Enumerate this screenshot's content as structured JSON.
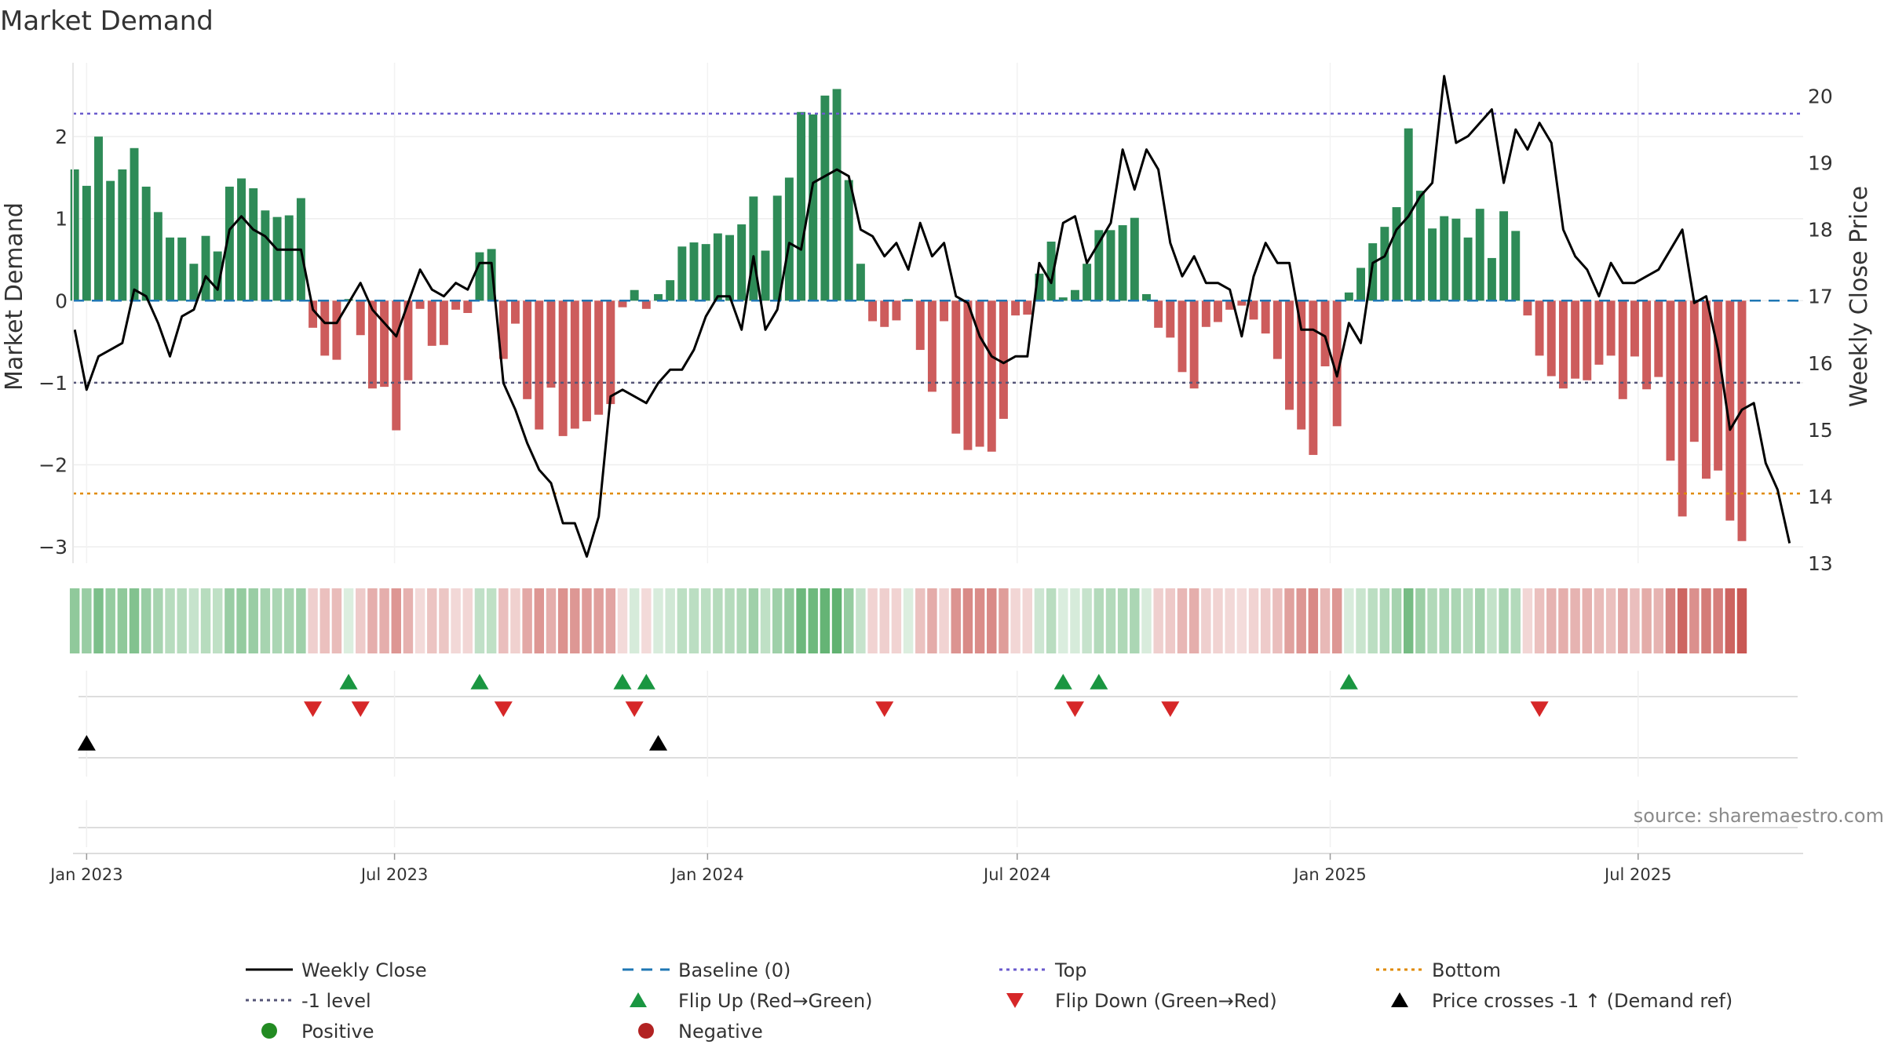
{
  "chart_data": {
    "type": "bar",
    "title": "Market Demand",
    "ylabel": "Market Demand",
    "ylabel_right": "Weekly Close Price",
    "source": "source: sharemaestro.com",
    "ylim": [
      -3.2,
      2.9
    ],
    "ylim_right": [
      13.0,
      20.5
    ],
    "yticks": [
      2,
      1,
      0,
      -1,
      -2,
      -3
    ],
    "ytick_labels": [
      "2",
      "1",
      "0",
      "−1",
      "−2",
      "−3"
    ],
    "yticks_right": [
      20,
      19,
      18,
      17,
      16,
      15,
      14,
      13
    ],
    "ytick_labels_right": [
      "20",
      "19",
      "18",
      "17",
      "16",
      "15",
      "14",
      "13"
    ],
    "x_start": "2022-12-25",
    "week_days": 7,
    "x_range_days": [
      -1,
      1016
    ],
    "x_ticks": [
      {
        "label": "Jan 2023",
        "day": 7
      },
      {
        "label": "Jul 2023",
        "day": 188
      },
      {
        "label": "Jan 2024",
        "day": 372
      },
      {
        "label": "Jul 2024",
        "day": 554
      },
      {
        "label": "Jan 2025",
        "day": 738
      },
      {
        "label": "Jul 2025",
        "day": 919
      }
    ],
    "reference_lines": {
      "top": 2.28,
      "minus_one": -1.0,
      "bottom": -2.35,
      "baseline": 0
    },
    "colors": {
      "positive_bar": "#2e8b57",
      "negative_bar": "#cd5c5c",
      "baseline": "#1f77b4",
      "top": "#6a5acd",
      "bottom": "#e08a00",
      "minus_one": "#555577",
      "close": "#000000",
      "flip_up": "#1a9641",
      "flip_down": "#d62728",
      "cross": "#000000",
      "positive_dot": "#228b22",
      "negative_dot": "#b22222",
      "heat_positive_rgb": "60,160,80",
      "heat_negative_rgb": "195,70,65"
    },
    "demand": [
      1.6,
      1.4,
      2.0,
      1.46,
      1.6,
      1.86,
      1.39,
      1.08,
      0.77,
      0.77,
      0.45,
      0.79,
      0.6,
      1.39,
      1.49,
      1.37,
      1.1,
      1.02,
      1.04,
      1.25,
      -0.33,
      -0.67,
      -0.72,
      0.02,
      -0.42,
      -1.07,
      -1.05,
      -1.58,
      -0.97,
      -0.1,
      -0.55,
      -0.54,
      -0.11,
      -0.15,
      0.59,
      0.63,
      -0.71,
      -0.28,
      -1.2,
      -1.57,
      -1.06,
      -1.65,
      -1.56,
      -1.47,
      -1.39,
      -1.26,
      -0.08,
      0.13,
      -0.1,
      0.08,
      0.25,
      0.66,
      0.71,
      0.69,
      0.82,
      0.8,
      0.93,
      1.27,
      0.61,
      1.28,
      1.5,
      2.3,
      2.27,
      2.5,
      2.58,
      1.47,
      0.45,
      -0.25,
      -0.32,
      -0.24,
      0.02,
      -0.6,
      -1.11,
      -0.25,
      -1.62,
      -1.82,
      -1.78,
      -1.84,
      -1.44,
      -0.18,
      -0.17,
      0.33,
      0.72,
      0.04,
      0.13,
      0.45,
      0.86,
      0.86,
      0.92,
      1.01,
      0.08,
      -0.33,
      -0.45,
      -0.87,
      -1.07,
      -0.32,
      -0.26,
      -0.11,
      -0.06,
      -0.23,
      -0.4,
      -0.71,
      -1.33,
      -1.57,
      -1.88,
      -0.8,
      -1.53,
      0.1,
      0.4,
      0.7,
      0.9,
      1.14,
      2.1,
      1.34,
      0.88,
      1.03,
      1.0,
      0.77,
      1.12,
      0.52,
      1.09,
      0.85,
      -0.18,
      -0.67,
      -0.92,
      -1.07,
      -0.95,
      -0.97,
      -0.78,
      -0.67,
      -1.2,
      -0.68,
      -1.08,
      -0.93,
      -1.95,
      -2.63,
      -1.72,
      -2.17,
      -2.07,
      -2.68,
      -2.93
    ],
    "weekly_close": [
      16.5,
      15.6,
      16.1,
      16.2,
      16.3,
      17.1,
      17.0,
      16.6,
      16.1,
      16.7,
      16.8,
      17.3,
      17.1,
      18.0,
      18.2,
      18.0,
      17.9,
      17.7,
      17.7,
      17.7,
      16.8,
      16.6,
      16.6,
      16.9,
      17.2,
      16.8,
      16.6,
      16.4,
      16.9,
      17.4,
      17.1,
      17.0,
      17.2,
      17.1,
      17.5,
      17.5,
      15.7,
      15.3,
      14.8,
      14.4,
      14.2,
      13.6,
      13.6,
      13.1,
      13.7,
      15.5,
      15.6,
      15.5,
      15.4,
      15.7,
      15.9,
      15.9,
      16.2,
      16.7,
      17.0,
      17.0,
      16.5,
      17.6,
      16.5,
      16.8,
      17.8,
      17.7,
      18.7,
      18.8,
      18.9,
      18.8,
      18.0,
      17.9,
      17.6,
      17.8,
      17.4,
      18.1,
      17.6,
      17.8,
      17.0,
      16.9,
      16.4,
      16.1,
      16.0,
      16.1,
      16.1,
      17.5,
      17.2,
      18.1,
      18.2,
      17.5,
      17.8,
      18.1,
      19.2,
      18.6,
      19.2,
      18.9,
      17.8,
      17.3,
      17.6,
      17.2,
      17.2,
      17.1,
      16.4,
      17.3,
      17.8,
      17.5,
      17.5,
      16.5,
      16.5,
      16.4,
      15.8,
      16.6,
      16.3,
      17.5,
      17.6,
      18.0,
      18.2,
      18.5,
      18.7,
      20.3,
      19.3,
      19.4,
      19.6,
      19.8,
      18.7,
      19.5,
      19.2,
      19.6,
      19.3,
      18.0,
      17.6,
      17.4,
      17.0,
      17.5,
      17.2,
      17.2,
      17.3,
      17.4,
      17.7,
      18.0,
      16.9,
      17.0,
      16.2,
      15.0,
      15.3,
      15.4,
      14.5,
      14.1,
      13.3
    ],
    "flip_up_weeks": [
      23,
      34,
      46,
      48,
      83,
      86,
      107
    ],
    "flip_down_weeks": [
      20,
      24,
      36,
      47,
      68,
      84,
      92,
      123
    ],
    "price_cross_weeks": [
      1,
      49
    ],
    "legend": {
      "weekly_close": "Weekly Close",
      "baseline": "Baseline (0)",
      "top": "Top",
      "bottom": "Bottom",
      "minus_one": "-1 level",
      "flip_up": "Flip Up (Red→Green)",
      "flip_down": "Flip Down (Green→Red)",
      "price_cross": "Price crosses -1 ↑ (Demand ref)",
      "positive": "Positive",
      "negative": "Negative"
    }
  }
}
